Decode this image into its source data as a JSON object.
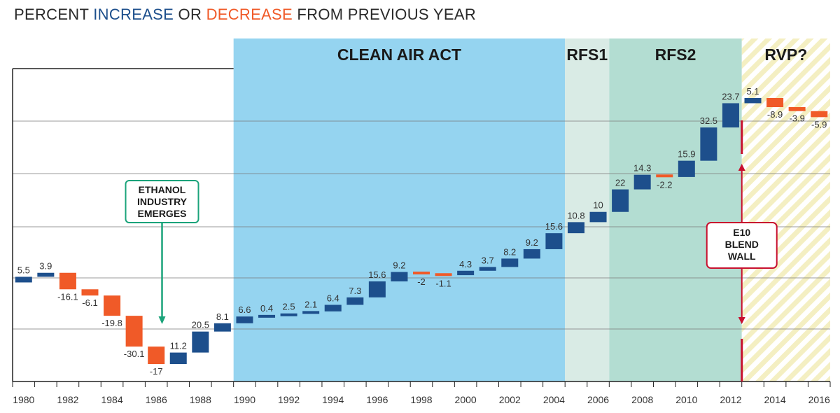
{
  "title": {
    "prefix": "PERCENT ",
    "increase_word": "INCREASE",
    "middle": " OR ",
    "decrease_word": "DECREASE",
    "suffix": " FROM PREVIOUS YEAR"
  },
  "colors": {
    "increase": "#1d4f8c",
    "decrease": "#f05a28",
    "clean_air_act": "#95d4f0",
    "rfs1": "#d9ebe5",
    "rfs2": "#b3ddd2",
    "rvp": "#f4efc2",
    "callout_ethanol": "#1aa37a",
    "callout_e10": "#c8102e"
  },
  "chart_data": {
    "type": "waterfall",
    "x": [
      1980,
      1981,
      1982,
      1983,
      1984,
      1985,
      1986,
      1987,
      1988,
      1989,
      1990,
      1991,
      1992,
      1993,
      1994,
      1995,
      1996,
      1997,
      1998,
      1999,
      2000,
      2001,
      2002,
      2003,
      2004,
      2005,
      2006,
      2007,
      2008,
      2009,
      2010,
      2011,
      2012,
      2013,
      2014,
      2015,
      2016
    ],
    "values": [
      5.5,
      3.9,
      -16.1,
      -6.1,
      -19.8,
      -30.1,
      -17,
      11.2,
      20.5,
      8.1,
      6.6,
      0.4,
      2.5,
      2.1,
      6.4,
      7.3,
      15.6,
      9.2,
      -2,
      -1.1,
      4.3,
      3.7,
      8.2,
      9.2,
      15.6,
      10.8,
      10,
      22,
      14.3,
      -2.2,
      15.9,
      32.5,
      23.7,
      5.1,
      -8.9,
      -3.9,
      -5.9
    ],
    "x_ticks": [
      "1980",
      "1982",
      "1984",
      "1986",
      "1988",
      "1990",
      "1992",
      "1994",
      "1996",
      "1998",
      "2000",
      "2002",
      "2004",
      "2006",
      "2008",
      "2010",
      "2012",
      "2014",
      "2016"
    ],
    "regions": [
      {
        "label": "CLEAN AIR ACT",
        "start": 1990,
        "end": 2005
      },
      {
        "label": "RFS1",
        "start": 2005,
        "end": 2007
      },
      {
        "label": "RFS2",
        "start": 2007,
        "end": 2013
      },
      {
        "label": "RVP?",
        "start": 2013,
        "end": 2017
      }
    ],
    "annotations": [
      {
        "id": "ethanol",
        "lines": [
          "ETHANOL",
          "INDUSTRY",
          "EMERGES"
        ],
        "x": 1986.7
      },
      {
        "id": "e10",
        "lines": [
          "E10",
          "BLEND",
          "WALL"
        ],
        "x": 2013
      }
    ],
    "grid": true
  }
}
